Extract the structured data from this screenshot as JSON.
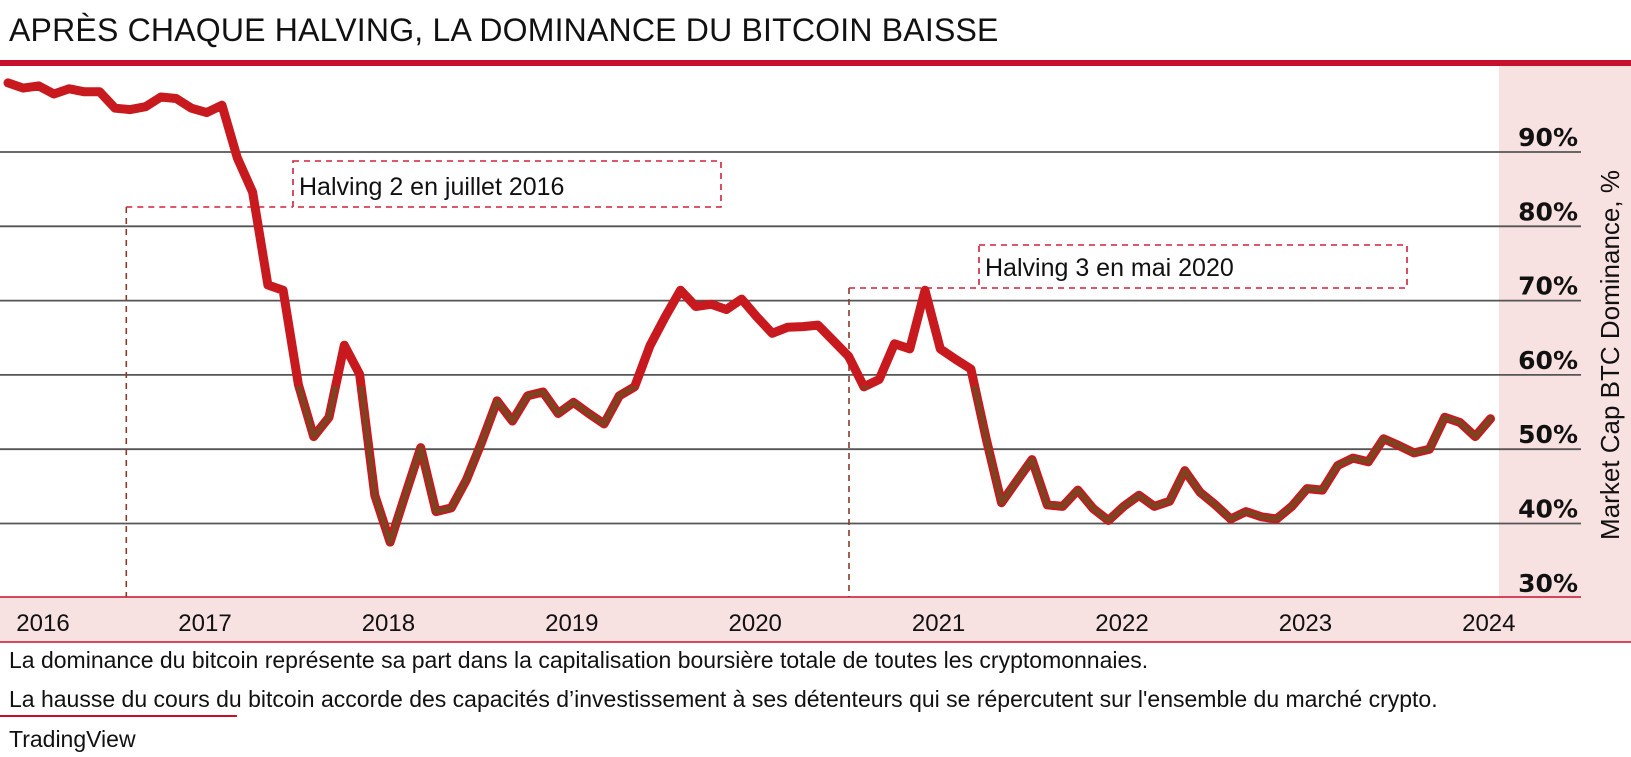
{
  "title": "APRÈS CHAQUE HALVING, LA DOMINANCE DU BITCOIN BAISSE",
  "footnotes": [
    "La dominance du bitcoin représente sa part dans la capitalisation boursière totale de toutes les cryptomonnaies.",
    "La hausse du cours du bitcoin accorde des capacités d’investissement à ses détenteurs qui se répercutent sur l'ensemble du marché crypto."
  ],
  "source": "TradingView",
  "colors": {
    "accent": "#c8102e",
    "line": "#c8191f",
    "line_low": "#7a4520",
    "panel": "#f8e1e1",
    "grid": "#555555"
  },
  "chart_data": {
    "type": "line",
    "title": "APRÈS CHAQUE HALVING, LA DOMINANCE DU BITCOIN BAISSE",
    "xlabel": "",
    "ylabel": "Market Cap BTC Dominance, %",
    "ylim": [
      30,
      100
    ],
    "yticks": [
      30,
      40,
      50,
      60,
      70,
      80,
      90
    ],
    "ytick_labels": [
      "30%",
      "40%",
      "50%",
      "60%",
      "70%",
      "80%",
      "90%"
    ],
    "xticks": [
      "2016",
      "2017",
      "2018",
      "2019",
      "2020",
      "2021",
      "2022",
      "2023",
      "2024"
    ],
    "grid": true,
    "y_axis_position": "right",
    "series": [
      {
        "x": [
          "2015-11",
          "2015-12",
          "2016-01",
          "2016-02",
          "2016-03",
          "2016-04",
          "2016-05",
          "2016-06",
          "2016-07",
          "2016-08",
          "2016-09",
          "2016-10",
          "2016-11",
          "2016-12",
          "2017-01",
          "2017-02",
          "2017-03",
          "2017-04",
          "2017-05",
          "2017-06",
          "2017-07",
          "2017-08",
          "2017-09",
          "2017-10",
          "2017-11",
          "2017-12",
          "2018-01",
          "2018-02",
          "2018-03",
          "2018-04",
          "2018-05",
          "2018-06",
          "2018-07",
          "2018-08",
          "2018-09",
          "2018-10",
          "2018-11",
          "2018-12",
          "2019-01",
          "2019-02",
          "2019-03",
          "2019-04",
          "2019-05",
          "2019-06",
          "2019-07",
          "2019-08",
          "2019-09",
          "2019-10",
          "2019-11",
          "2019-12",
          "2020-01",
          "2020-02",
          "2020-03",
          "2020-04",
          "2020-05",
          "2020-06",
          "2020-07",
          "2020-08",
          "2020-09",
          "2020-10",
          "2020-11",
          "2020-12",
          "2021-01",
          "2021-02",
          "2021-03",
          "2021-04",
          "2021-05",
          "2021-06",
          "2021-07",
          "2021-08",
          "2021-09",
          "2021-10",
          "2021-11",
          "2021-12",
          "2022-01",
          "2022-02",
          "2022-03",
          "2022-04",
          "2022-05",
          "2022-06",
          "2022-07",
          "2022-08",
          "2022-09",
          "2022-10",
          "2022-11",
          "2022-12",
          "2023-01",
          "2023-02",
          "2023-03",
          "2023-04",
          "2023-05",
          "2023-06",
          "2023-07",
          "2023-08",
          "2023-09",
          "2023-10",
          "2023-11",
          "2023-12"
        ],
        "y": [
          99.3,
          98.6,
          98.9,
          97.8,
          98.5,
          98.1,
          98.1,
          95.9,
          95.7,
          96.1,
          97.4,
          97.2,
          95.9,
          95.3,
          96.3,
          89.2,
          84.6,
          72.1,
          71.4,
          58.7,
          51.7,
          54.3,
          64.0,
          60.1,
          43.8,
          37.5,
          43.9,
          50.2,
          41.6,
          42.1,
          45.9,
          51.0,
          56.5,
          53.8,
          57.2,
          57.7,
          54.8,
          56.3,
          54.8,
          53.4,
          57.2,
          58.4,
          63.9,
          67.8,
          71.4,
          69.2,
          69.5,
          68.8,
          70.2,
          67.8,
          65.6,
          66.4,
          66.5,
          66.7,
          64.6,
          62.5,
          58.4,
          59.4,
          64.2,
          63.5,
          71.4,
          63.5,
          62.1,
          60.8,
          51.4,
          42.8,
          45.7,
          48.6,
          42.5,
          42.3,
          44.5,
          42.0,
          40.4,
          42.3,
          43.8,
          42.3,
          43.0,
          47.1,
          44.2,
          42.5,
          40.6,
          41.6,
          40.9,
          40.6,
          42.3,
          44.7,
          44.5,
          47.8,
          48.8,
          48.3,
          51.4,
          50.5,
          49.5,
          50.0,
          54.3,
          53.6,
          51.7,
          54.1
        ]
      }
    ],
    "annotations": [
      {
        "text": "Halving 2 en juillet 2016",
        "date": "2016-07"
      },
      {
        "text": "Halving 3 en mai 2020",
        "date": "2020-05"
      }
    ]
  }
}
